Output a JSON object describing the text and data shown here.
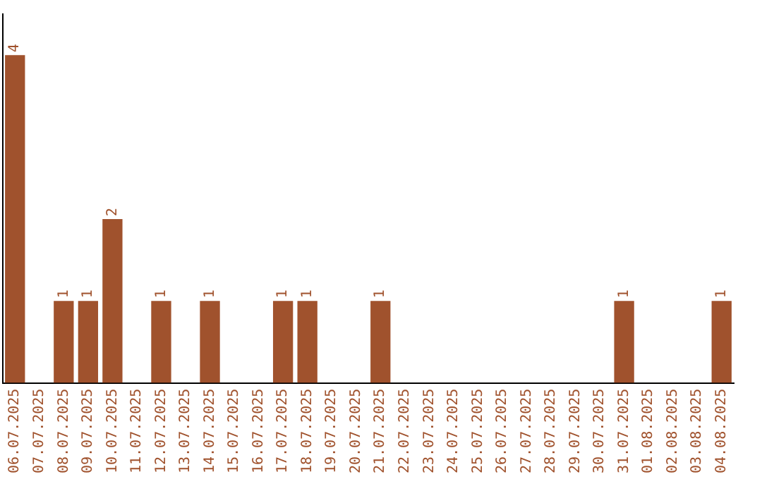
{
  "chart_data": {
    "type": "bar",
    "categories": [
      "06.07.2025",
      "07.07.2025",
      "08.07.2025",
      "09.07.2025",
      "10.07.2025",
      "11.07.2025",
      "12.07.2025",
      "13.07.2025",
      "14.07.2025",
      "15.07.2025",
      "16.07.2025",
      "17.07.2025",
      "18.07.2025",
      "19.07.2025",
      "20.07.2025",
      "21.07.2025",
      "22.07.2025",
      "23.07.2025",
      "24.07.2025",
      "25.07.2025",
      "26.07.2025",
      "27.07.2025",
      "28.07.2025",
      "29.07.2025",
      "30.07.2025",
      "31.07.2025",
      "01.08.2025",
      "02.08.2025",
      "03.08.2025",
      "04.08.2025"
    ],
    "values": [
      4,
      0,
      1,
      1,
      2,
      0,
      1,
      0,
      1,
      0,
      0,
      1,
      1,
      0,
      0,
      1,
      0,
      0,
      0,
      0,
      0,
      0,
      0,
      0,
      0,
      1,
      0,
      0,
      0,
      1
    ],
    "value_labels": [
      "4",
      null,
      "1",
      "1",
      "2",
      null,
      "1",
      null,
      "1",
      null,
      null,
      "1",
      "1",
      null,
      null,
      "1",
      null,
      null,
      null,
      null,
      null,
      null,
      null,
      null,
      null,
      "1",
      null,
      null,
      null,
      "1"
    ],
    "color": "#a0522d",
    "grid": false,
    "legend": false
  }
}
